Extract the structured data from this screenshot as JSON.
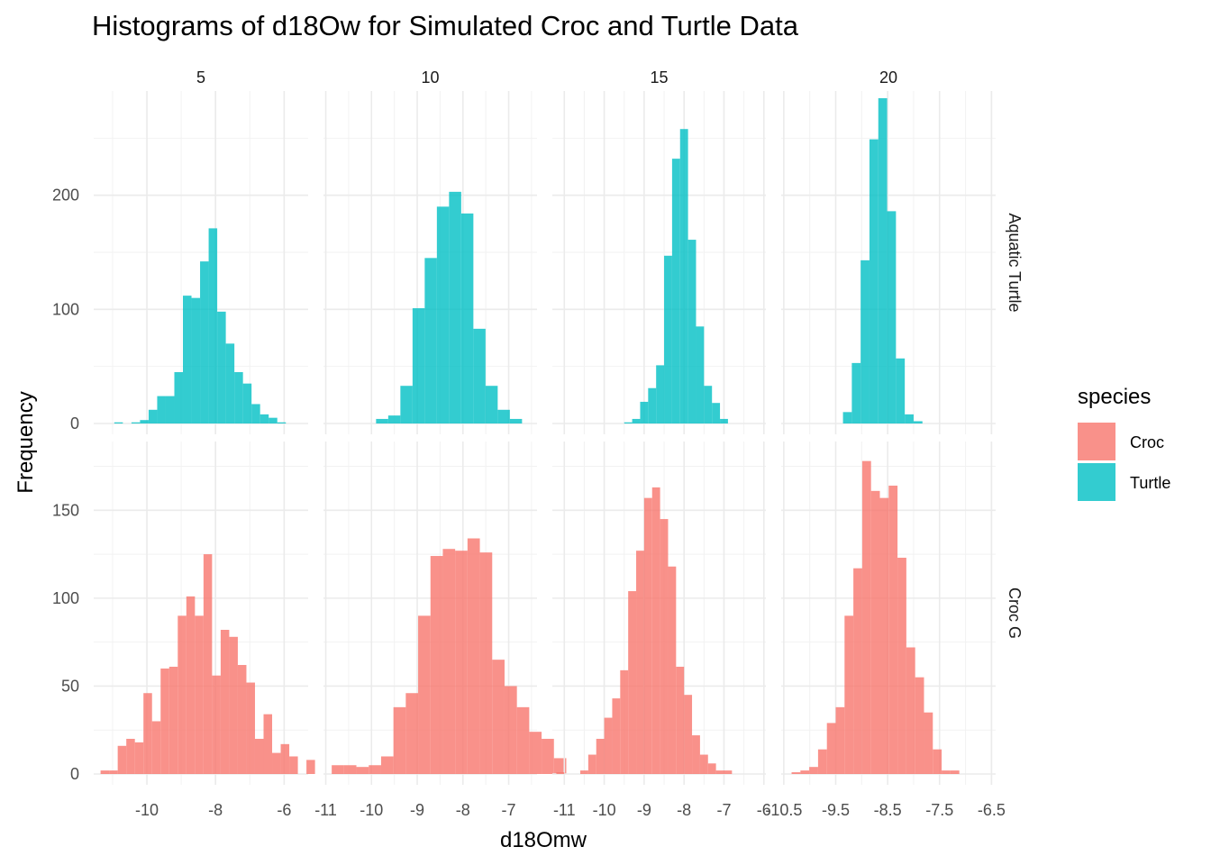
{
  "chart_data": {
    "type": "bar",
    "title": "Histograms of d18Ow for Simulated Croc and Turtle Data",
    "xlabel": "d18Omw",
    "ylabel": "Frequency",
    "columns": [
      "5",
      "10",
      "15",
      "20"
    ],
    "rows": [
      "Aquatic Turtle",
      "Croc G"
    ],
    "grid": true,
    "x_ticks": [
      [
        -10,
        -8,
        -6
      ],
      [
        -11,
        -10,
        -9,
        -8,
        -7
      ],
      [
        -11,
        -10,
        -9,
        -8,
        -7,
        -6
      ],
      [
        -10.5,
        -9.5,
        -8.5,
        -7.5,
        -6.5
      ]
    ],
    "x_tick_labels": [
      [
        "-10",
        "-8",
        "-6"
      ],
      [
        "-11",
        "-10",
        "-9",
        "-8",
        "-7"
      ],
      [
        "-11",
        "-10",
        "-9",
        "-8",
        "-7",
        "-6"
      ],
      [
        "-10.5",
        "-9.5",
        "-8.5",
        "-7.5",
        "-6.5"
      ]
    ],
    "rows_y": [
      {
        "ylim": [
          0,
          285
        ],
        "ticks": [
          0,
          100,
          200
        ],
        "tick_labels": [
          "0",
          "100",
          "200"
        ]
      },
      {
        "ylim": [
          0,
          185
        ],
        "ticks": [
          0,
          50,
          100,
          150
        ],
        "tick_labels": [
          "0",
          "50",
          "100",
          "150"
        ]
      }
    ],
    "legend": {
      "title": "species",
      "position": "right",
      "items": [
        {
          "name": "Croc",
          "color": "#F8766D"
        },
        {
          "name": "Turtle",
          "color": "#00BFC4"
        }
      ]
    },
    "panels": [
      {
        "row": 0,
        "col": 0,
        "species": "Turtle",
        "xlim": [
          -11.55,
          -5.3
        ],
        "bin_start": -11.2,
        "bin_width": 0.25,
        "counts": [
          0,
          1,
          0,
          1,
          3,
          12,
          24,
          24,
          45,
          112,
          110,
          142,
          171,
          98,
          70,
          45,
          35,
          17,
          8,
          5,
          1
        ]
      },
      {
        "row": 0,
        "col": 1,
        "species": "Turtle",
        "xlim": [
          -11.05,
          -6.38
        ],
        "bin_start": -9.9,
        "bin_width": 0.266,
        "counts": [
          4,
          7,
          33,
          101,
          145,
          190,
          203,
          184,
          83,
          33,
          12,
          4
        ]
      },
      {
        "row": 0,
        "col": 2,
        "species": "Turtle",
        "xlim": [
          -11.3,
          -5.95
        ],
        "bin_start": -9.7,
        "bin_width": 0.2,
        "counts": [
          0,
          1,
          4,
          19,
          31,
          51,
          147,
          232,
          258,
          161,
          85,
          33,
          18,
          4
        ]
      },
      {
        "row": 0,
        "col": 3,
        "species": "Turtle",
        "xlim": [
          -10.55,
          -6.42
        ],
        "bin_start": -9.36,
        "bin_width": 0.17,
        "counts": [
          10,
          53,
          143,
          249,
          285,
          186,
          57,
          8,
          2
        ]
      },
      {
        "row": 1,
        "col": 0,
        "species": "Croc",
        "xlim": [
          -11.55,
          -5.3
        ],
        "bin_start": -11.35,
        "bin_width": 0.25,
        "counts": [
          2,
          2,
          16,
          20,
          18,
          46,
          30,
          60,
          61,
          90,
          101,
          90,
          125,
          56,
          82,
          78,
          62,
          52,
          20,
          34,
          12,
          17,
          10,
          0,
          8
        ]
      },
      {
        "row": 1,
        "col": 1,
        "species": "Croc",
        "xlim": [
          -11.05,
          -6.38
        ],
        "bin_start": -10.87,
        "bin_width": 0.27,
        "counts": [
          5,
          5,
          4,
          5,
          10,
          38,
          46,
          90,
          124,
          128,
          127,
          134,
          126,
          65,
          50,
          38,
          24,
          20,
          9
        ]
      },
      {
        "row": 1,
        "col": 2,
        "species": "Croc",
        "xlim": [
          -11.3,
          -5.95
        ],
        "bin_start": -11.2,
        "bin_width": 0.2,
        "counts": [
          1,
          0,
          0,
          2,
          11,
          20,
          32,
          43,
          59,
          104,
          127,
          157,
          163,
          145,
          118,
          61,
          45,
          22,
          11,
          6,
          2,
          2
        ]
      },
      {
        "row": 1,
        "col": 3,
        "species": "Croc",
        "xlim": [
          -10.55,
          -6.42
        ],
        "bin_start": -10.35,
        "bin_width": 0.17,
        "counts": [
          1,
          2,
          4,
          14,
          29,
          38,
          90,
          117,
          178,
          161,
          157,
          164,
          123,
          72,
          55,
          35,
          14,
          2,
          2
        ]
      }
    ]
  }
}
